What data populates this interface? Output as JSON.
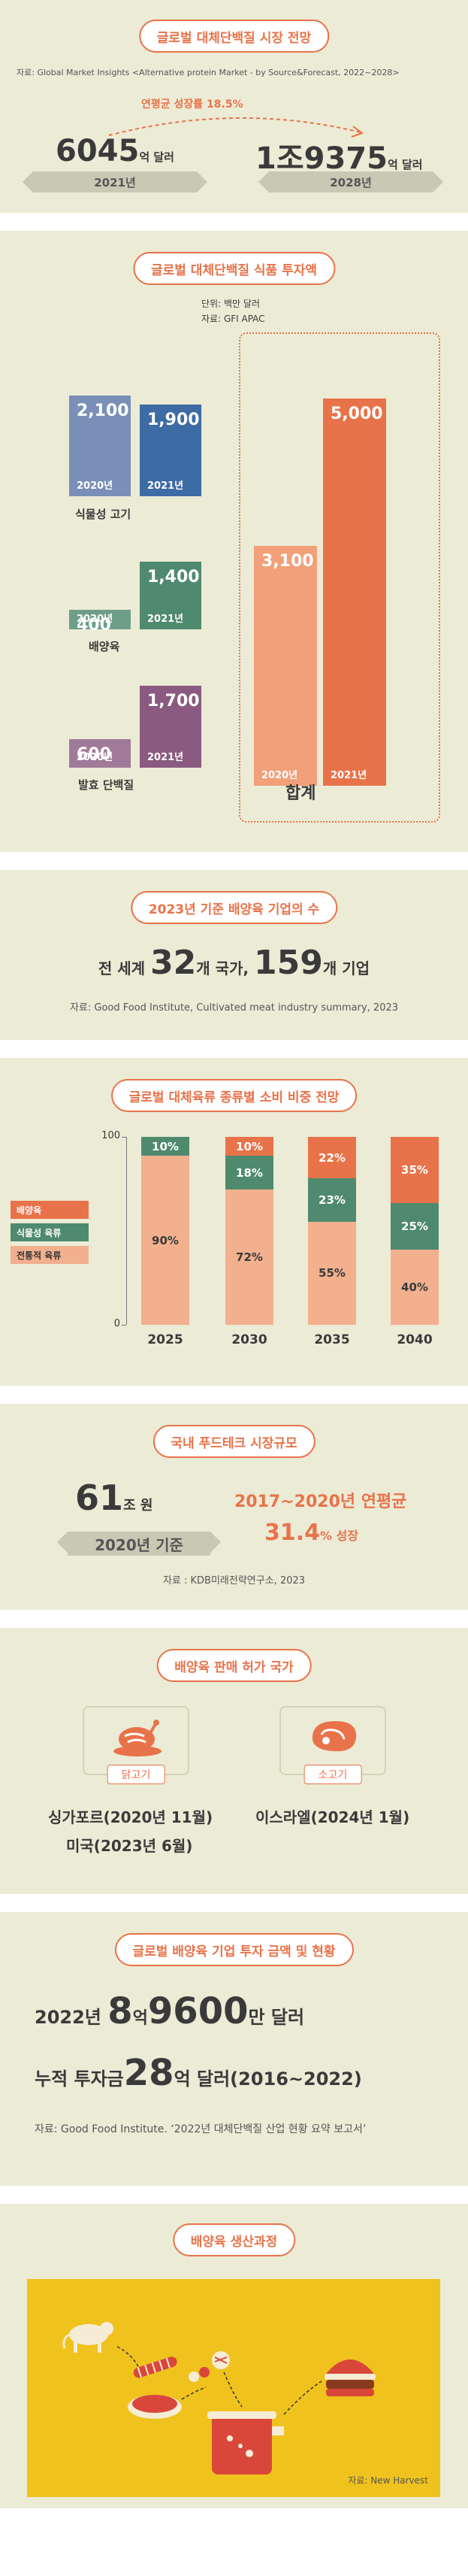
{
  "sec1": {
    "title": "글로벌 대체단백질 시장 전망",
    "source": "자료: Global Market Insights <Alternative protein Market - by Source&Forecast, 2022~2028>",
    "cagr": "연평균 성장률 18.5%",
    "left_value": "6045",
    "left_unit": "억 달러",
    "left_year": "2021년",
    "right_value": "1조9375",
    "right_unit": "억 달러",
    "right_year": "2028년"
  },
  "sec2": {
    "title": "글로벌 대체단백질 식품 투자액",
    "unit": "단위: 백만 달러",
    "source": "자료: GFI APAC",
    "total_label": "합계"
  },
  "sec3": {
    "title": "2023년 기준 배양육 기업의 수",
    "t1": "전 세계 ",
    "n1": "32",
    "t2": "개 국가, ",
    "n2": "159",
    "t3": "개 기업",
    "source": "자료: Good Food Institute, Cultivated meat industry summary, 2023"
  },
  "sec4": {
    "title": "글로벌  대체육류 종류별  소비 비중 전망",
    "legend": [
      "배양육",
      "식물성 육류",
      "전통적 육류"
    ]
  },
  "sec5": {
    "title": "국내 푸드테크 시장규모",
    "value": "61",
    "unit": "조 원",
    "basis": "2020년 기준",
    "period": "2017~2020년 연평균",
    "rate": "31.4",
    "rate_unit": "% 성장",
    "source": "자료 : KDB미래전략연구소, 2023"
  },
  "sec6": {
    "title": "배양육 판매 허가 국가",
    "chicken_label": "닭고기",
    "beef_label": "소고기",
    "chicken_line1": "싱가포르(2020년 11월)",
    "chicken_line2": "미국(2023년 6월)",
    "beef_line1": "이스라엘(2024년 1월)"
  },
  "sec7": {
    "title": "글로벌 배양육 기업 투자 금액 및 현황",
    "l1_pre": "2022년 ",
    "l1_big1": "8",
    "l1_mid": "억",
    "l1_big2": "9600",
    "l1_post": "만 달러",
    "l2_pre": "누적 투자금",
    "l2_big": "28",
    "l2_post": "억 달러(2016~2022)",
    "source": "자료: Good Food Institute. ‘2022년 대체단백질 산업 현황 요약 보고서’"
  },
  "sec8": {
    "title": "배양육 생산과정",
    "source": "자료: New Harvest"
  },
  "chart_data": [
    {
      "type": "bar",
      "title": "글로벌 대체단백질 식품 투자액",
      "categories": [
        "식물성 고기",
        "배양육",
        "발효 단백질",
        "합계"
      ],
      "series": [
        {
          "name": "2020년",
          "values": [
            2100,
            400,
            600,
            3100
          ]
        },
        {
          "name": "2021년",
          "values": [
            1900,
            1400,
            1700,
            5000
          ]
        }
      ]
    },
    {
      "type": "bar",
      "stacked": true,
      "title": "글로벌  대체육류 종류별  소비 비중 전망",
      "categories": [
        "2025",
        "2030",
        "2035",
        "2040"
      ],
      "ylim": [
        0,
        100
      ],
      "yticks": [
        "0",
        "100"
      ],
      "series": [
        {
          "name": "전통적 육류",
          "values": [
            90,
            72,
            55,
            40
          ]
        },
        {
          "name": "식물성 육류",
          "values": [
            10,
            18,
            23,
            25
          ]
        },
        {
          "name": "배양육",
          "values": [
            0,
            10,
            22,
            35
          ]
        }
      ],
      "colors": {
        "배양육": "#e8734a",
        "식물성 육류": "#4f8a6e",
        "전통적 육류": "#f2b08f"
      }
    }
  ]
}
